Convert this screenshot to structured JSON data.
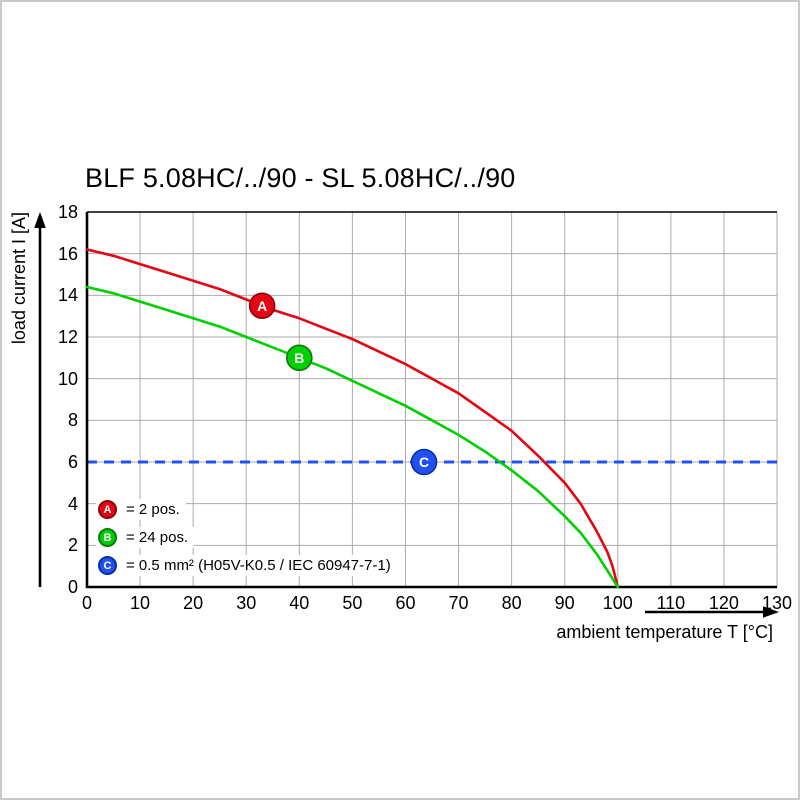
{
  "chart_data": {
    "type": "line",
    "title": "BLF 5.08HC/../90 - SL 5.08HC/../90",
    "xlabel": "ambient temperature T [°C]",
    "ylabel": "load current I [A]",
    "xlim": [
      0,
      130
    ],
    "ylim": [
      0,
      18
    ],
    "x_ticks": [
      0,
      10,
      20,
      30,
      40,
      50,
      60,
      70,
      80,
      90,
      100,
      110,
      120,
      130
    ],
    "y_ticks": [
      0,
      2,
      4,
      6,
      8,
      10,
      12,
      14,
      16,
      18
    ],
    "grid": true,
    "grid_color": "#ababab",
    "series": [
      {
        "name": "A",
        "label": "= 2 pos.",
        "color": "#e30613",
        "marker_border": "#8f040c",
        "marker": {
          "x": 33,
          "y": 13.5
        },
        "points": [
          [
            0,
            16.2
          ],
          [
            5,
            15.9
          ],
          [
            10,
            15.5
          ],
          [
            15,
            15.1
          ],
          [
            20,
            14.7
          ],
          [
            25,
            14.3
          ],
          [
            30,
            13.8
          ],
          [
            35,
            13.3
          ],
          [
            40,
            12.9
          ],
          [
            45,
            12.4
          ],
          [
            50,
            11.9
          ],
          [
            55,
            11.3
          ],
          [
            60,
            10.7
          ],
          [
            65,
            10.0
          ],
          [
            70,
            9.3
          ],
          [
            75,
            8.4
          ],
          [
            80,
            7.5
          ],
          [
            85,
            6.3
          ],
          [
            90,
            5.0
          ],
          [
            93,
            4.0
          ],
          [
            96,
            2.7
          ],
          [
            98,
            1.7
          ],
          [
            99,
            1.0
          ],
          [
            100,
            0
          ]
        ]
      },
      {
        "name": "B",
        "label": "= 24 pos.",
        "color": "#00cf00",
        "marker_border": "#0a7a0a",
        "marker": {
          "x": 40,
          "y": 11.0
        },
        "points": [
          [
            0,
            14.4
          ],
          [
            5,
            14.1
          ],
          [
            10,
            13.7
          ],
          [
            15,
            13.3
          ],
          [
            20,
            12.9
          ],
          [
            25,
            12.5
          ],
          [
            30,
            12.0
          ],
          [
            35,
            11.5
          ],
          [
            40,
            11.0
          ],
          [
            45,
            10.5
          ],
          [
            50,
            9.9
          ],
          [
            55,
            9.3
          ],
          [
            60,
            8.7
          ],
          [
            65,
            8.0
          ],
          [
            70,
            7.3
          ],
          [
            75,
            6.5
          ],
          [
            80,
            5.6
          ],
          [
            85,
            4.6
          ],
          [
            90,
            3.4
          ],
          [
            93,
            2.6
          ],
          [
            96,
            1.6
          ],
          [
            98,
            0.8
          ],
          [
            99,
            0.4
          ],
          [
            100,
            0
          ]
        ]
      }
    ],
    "reference_line": {
      "name": "C",
      "label": "= 0.5 mm² (H05V-K0.5 / IEC 60947-7-1)",
      "color": "#2050f0",
      "marker_border": "#0c2fa0",
      "y": 6,
      "style": "dashed",
      "marker": {
        "x": 63.5,
        "y": 6
      }
    },
    "legend_position": "bottom-left-inside"
  }
}
